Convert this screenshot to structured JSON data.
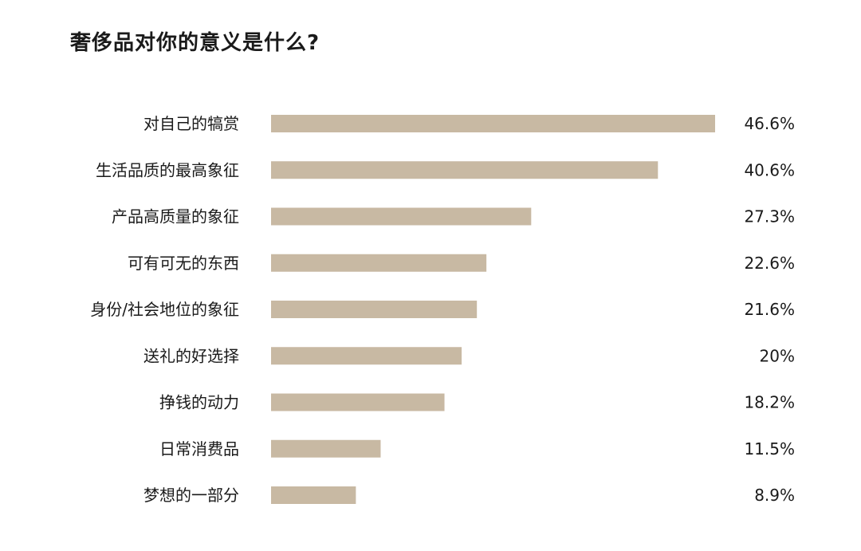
{
  "chart_data": {
    "type": "bar",
    "orientation": "horizontal",
    "title": "奢侈品对你的意义是什么?",
    "categories": [
      "对自己的犒赏",
      "生活品质的最高象征",
      "产品高质量的象征",
      "可有可无的东西",
      "身份/社会地位的象征",
      "送礼的好选择",
      "挣钱的动力",
      "日常消费品",
      "梦想的一部分"
    ],
    "values": [
      46.6,
      40.6,
      27.3,
      22.6,
      21.6,
      20,
      18.2,
      11.5,
      8.9
    ],
    "value_labels": [
      "46.6%",
      "40.6%",
      "27.3%",
      "22.6%",
      "21.6%",
      "20%",
      "18.2%",
      "11.5%",
      "8.9%"
    ],
    "unit": "%",
    "xlim": [
      0,
      46.6
    ],
    "grid": false,
    "legend": "none",
    "bar_color": "#c8b9a3"
  }
}
